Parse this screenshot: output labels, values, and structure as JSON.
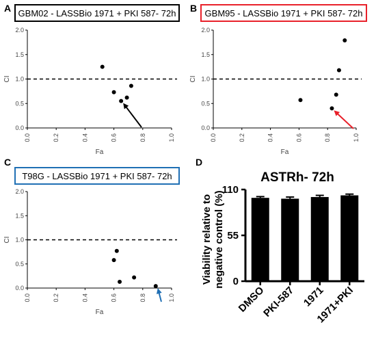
{
  "figure": {
    "panels": [
      {
        "label": "A",
        "title": "GBM02 - LASSBio 1971 + PKI 587- 72h",
        "border_color": "#000000",
        "arrow_color": "#000000"
      },
      {
        "label": "B",
        "title": "GBM95 - LASSBio 1971 + PKI 587- 72h",
        "border_color": "#e8202a",
        "arrow_color": "#e8202a"
      },
      {
        "label": "C",
        "title": "T98G - LASSBio 1971 + PKI 587- 72h",
        "border_color": "#1f6fb4",
        "arrow_color": "#1f6fb4"
      },
      {
        "label": "D",
        "title": "ASTRh- 72h"
      }
    ]
  },
  "chart_data": [
    {
      "type": "scatter",
      "panel": "A",
      "title": "GBM02 - LASSBio 1971 + PKI 587- 72h",
      "xlabel": "Fa",
      "ylabel": "CI",
      "xlim": [
        0.0,
        1.0
      ],
      "ylim": [
        0.0,
        2.0
      ],
      "xticks": [
        "0.0",
        "0.2",
        "0.4",
        "0.6",
        "0.8",
        "1.0"
      ],
      "yticks": [
        "0.0",
        "0.5",
        "1.0",
        "1.5",
        "2.0"
      ],
      "reference_line": 1.0,
      "points": [
        [
          0.52,
          1.25
        ],
        [
          0.6,
          0.73
        ],
        [
          0.65,
          0.55
        ],
        [
          0.69,
          0.62
        ],
        [
          0.72,
          0.86
        ]
      ],
      "arrow_target_point": 2
    },
    {
      "type": "scatter",
      "panel": "B",
      "title": "GBM95 - LASSBio 1971 + PKI 587- 72h",
      "xlabel": "Fa",
      "ylabel": "CI",
      "xlim": [
        0.0,
        1.0
      ],
      "ylim": [
        0.0,
        2.0
      ],
      "xticks": [
        "0.0",
        "0.2",
        "0.4",
        "0.6",
        "0.8",
        "1.0"
      ],
      "yticks": [
        "0.0",
        "0.5",
        "1.0",
        "1.5",
        "2.0"
      ],
      "reference_line": 1.0,
      "points": [
        [
          0.61,
          0.57
        ],
        [
          0.83,
          0.4
        ],
        [
          0.86,
          0.68
        ],
        [
          0.88,
          1.18
        ],
        [
          0.92,
          1.79
        ]
      ],
      "arrow_target_point": 1
    },
    {
      "type": "scatter",
      "panel": "C",
      "title": "T98G - LASSBio 1971 + PKI 587- 72h",
      "xlabel": "Fa",
      "ylabel": "CI",
      "xlim": [
        0.0,
        1.0
      ],
      "ylim": [
        0.0,
        2.0
      ],
      "xticks": [
        "0.0",
        "0.2",
        "0.4",
        "0.6",
        "0.8",
        "1.0"
      ],
      "yticks": [
        "0.0",
        "0.5",
        "1.0",
        "1.5",
        "2.0"
      ],
      "reference_line": 1.0,
      "points": [
        [
          0.6,
          0.58
        ],
        [
          0.62,
          0.77
        ],
        [
          0.64,
          0.13
        ],
        [
          0.74,
          0.22
        ],
        [
          0.89,
          0.04
        ]
      ],
      "arrow_target_point": 4
    },
    {
      "type": "bar",
      "panel": "D",
      "title": "ASTRh- 72h",
      "ylabel": "Viability relative to negative control (%)",
      "categories": [
        "DMSO",
        "PKI-587",
        "1971",
        "1971+PKI"
      ],
      "values": [
        100,
        99,
        101,
        103
      ],
      "errors": [
        1.5,
        2,
        2,
        1.5
      ],
      "ylim": [
        0,
        110
      ],
      "yticks": [
        "0",
        "55",
        "110"
      ],
      "bar_color": "#000000"
    }
  ]
}
